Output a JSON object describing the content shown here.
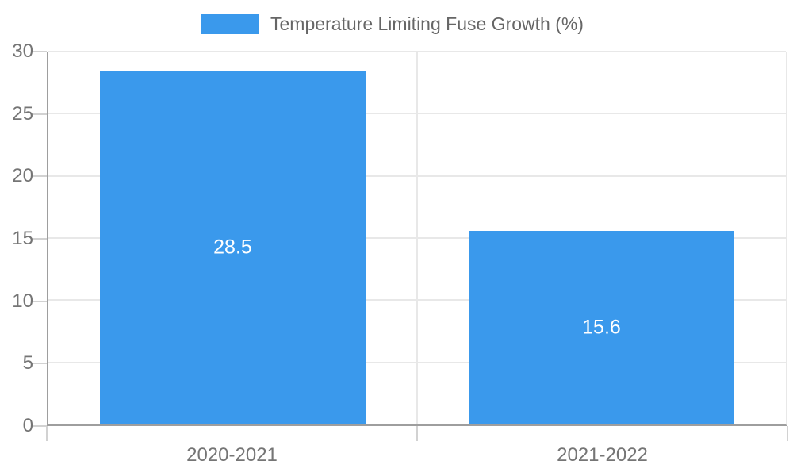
{
  "chart_data": {
    "type": "bar",
    "title": "Temperature Limiting Fuse Growth (%)",
    "categories": [
      "2020-2021",
      "2021-2022"
    ],
    "values": [
      28.5,
      15.6
    ],
    "value_labels": [
      "28.5",
      "15.6"
    ],
    "xlabel": "",
    "ylabel": "",
    "ylim": [
      0,
      30
    ],
    "yticks": [
      0,
      5,
      10,
      15,
      20,
      25,
      30
    ],
    "legend_position": "top",
    "grid": true,
    "bar_width_fraction": 0.361,
    "colors": {
      "bar": "#3a99ec",
      "value_label": "#ffffff",
      "axis_text": "#757575",
      "legend_text": "#666666",
      "axis_line": "#9e9e9e",
      "gridline": "#e8e8e8",
      "tick": "#d2d2d2"
    }
  }
}
